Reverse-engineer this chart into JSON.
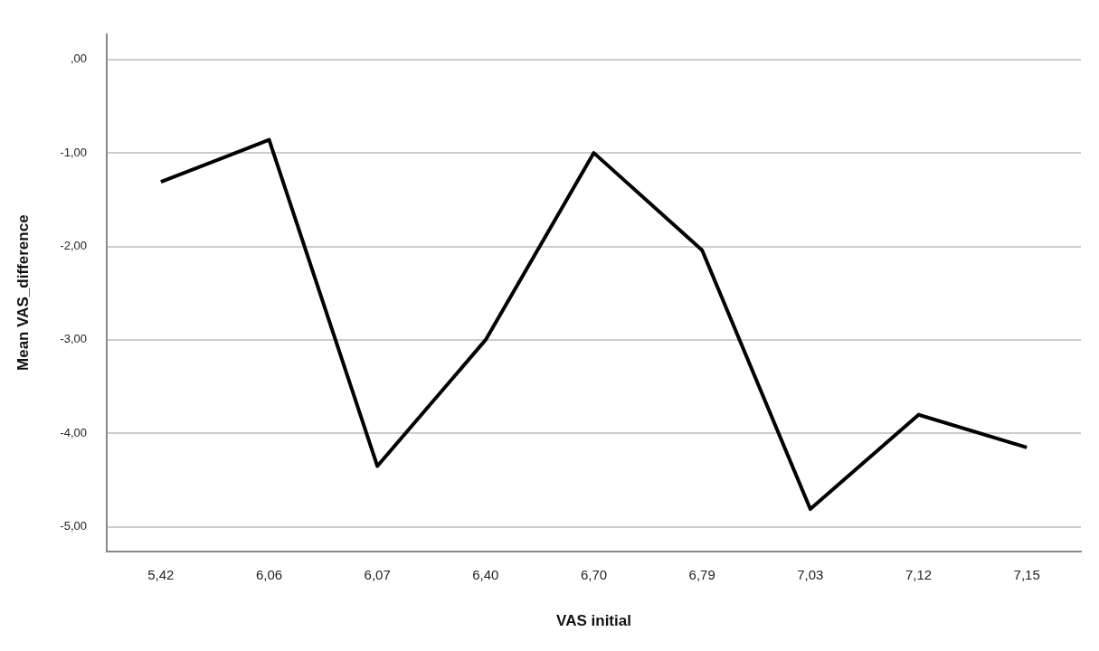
{
  "chart_data": {
    "type": "line",
    "xlabel": "VAS initial",
    "ylabel": "Mean VAS_difference",
    "categories": [
      "5,42",
      "6,06",
      "6,07",
      "6,40",
      "6,70",
      "6,79",
      "7,03",
      "7,12",
      "7,15"
    ],
    "series": [
      {
        "color": "#000000",
        "values": [
          -1.31,
          -0.86,
          -4.35,
          -3.0,
          -1.0,
          -2.04,
          -4.81,
          -3.8,
          -4.15
        ]
      }
    ],
    "ylim": [
      -5.26,
      0.27
    ],
    "yticks": [
      {
        "value": 0,
        "label": ",00"
      },
      {
        "value": -1,
        "label": "-1,00"
      },
      {
        "value": -2,
        "label": "-2,00"
      },
      {
        "value": -3,
        "label": "-3,00"
      },
      {
        "value": -4,
        "label": "-4,00"
      },
      {
        "value": -5,
        "label": "-5,00"
      }
    ],
    "grid": "y",
    "legend": false,
    "marker": "none",
    "line_style": "solid"
  }
}
